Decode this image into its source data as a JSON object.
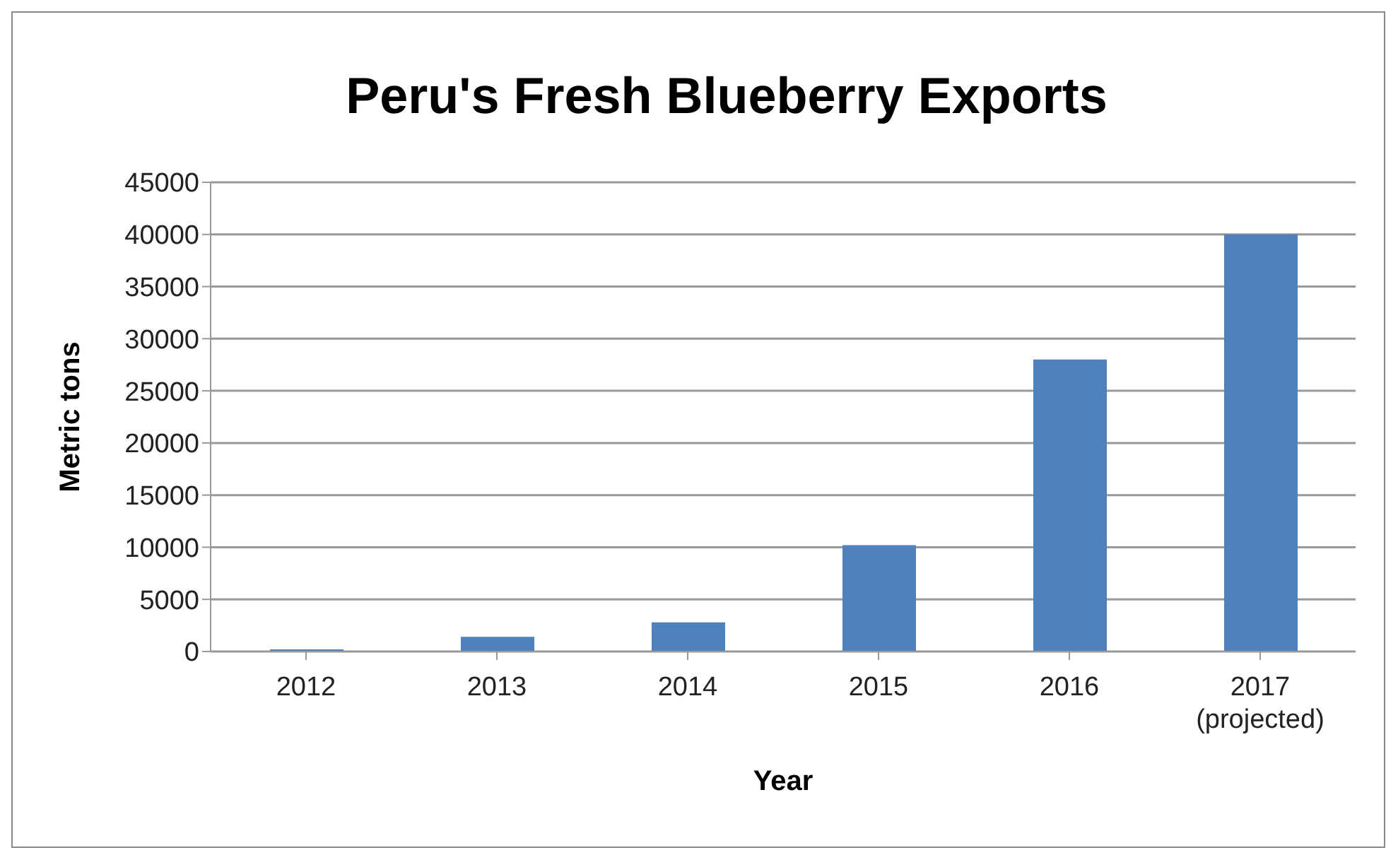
{
  "chart_data": {
    "type": "bar",
    "title": "Peru's Fresh Blueberry Exports",
    "xlabel": "Year",
    "ylabel": "Metric tons",
    "categories": [
      "2012",
      "2013",
      "2014",
      "2015",
      "2016",
      "2017\n(projected)"
    ],
    "values": [
      200,
      1400,
      2800,
      10200,
      28000,
      40000
    ],
    "color": "#4f81bd",
    "ylim": [
      0,
      45000
    ],
    "yticks": [
      0,
      5000,
      10000,
      15000,
      20000,
      25000,
      30000,
      35000,
      40000,
      45000
    ],
    "grid": "y",
    "legend": false
  }
}
